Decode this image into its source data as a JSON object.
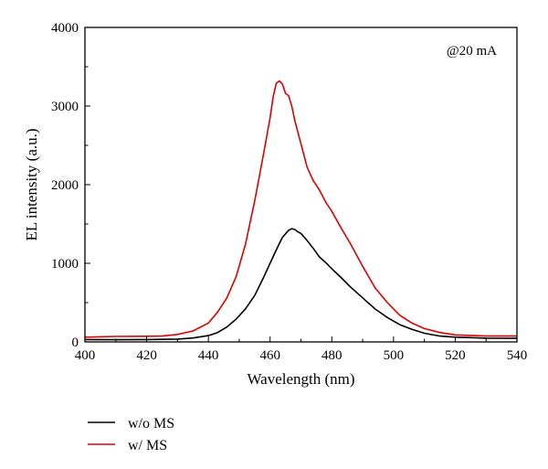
{
  "chart_data": {
    "type": "line",
    "title": "",
    "xlabel": "Wavelength (nm)",
    "ylabel": "EL intensity (a.u.)",
    "xlim": [
      400,
      540
    ],
    "ylim": [
      0,
      4000
    ],
    "xticks": [
      400,
      420,
      440,
      460,
      480,
      500,
      520,
      540
    ],
    "yticks": [
      0,
      1000,
      2000,
      3000,
      4000
    ],
    "annotation": "@20 mA",
    "grid": false,
    "legend_position": "below-left",
    "series": [
      {
        "name": "w/o MS",
        "color": "#000000",
        "x": [
          400,
          410,
          420,
          425,
          430,
          435,
          440,
          443,
          446,
          449,
          452,
          455,
          458,
          460,
          462,
          464,
          466,
          467,
          468,
          469,
          470,
          472,
          474,
          476,
          478,
          480,
          483,
          486,
          490,
          494,
          498,
          502,
          506,
          510,
          515,
          520,
          530,
          540
        ],
        "y": [
          30,
          28,
          30,
          32,
          36,
          50,
          80,
          120,
          190,
          290,
          420,
          590,
          830,
          1000,
          1170,
          1330,
          1420,
          1440,
          1430,
          1400,
          1380,
          1290,
          1190,
          1080,
          1010,
          930,
          820,
          700,
          560,
          420,
          310,
          220,
          160,
          110,
          75,
          60,
          48,
          45
        ]
      },
      {
        "name": "w/ MS",
        "color": "#e00000",
        "x": [
          400,
          410,
          420,
          425,
          430,
          435,
          440,
          443,
          446,
          449,
          452,
          455,
          458,
          460,
          461,
          462,
          463,
          464,
          465,
          466,
          467,
          468,
          470,
          472,
          474,
          476,
          478,
          480,
          483,
          486,
          490,
          494,
          498,
          502,
          506,
          510,
          515,
          520,
          530,
          540
        ],
        "y": [
          60,
          70,
          72,
          75,
          95,
          140,
          240,
          380,
          560,
          830,
          1240,
          1790,
          2420,
          2850,
          3120,
          3290,
          3320,
          3280,
          3160,
          3130,
          3000,
          2820,
          2520,
          2220,
          2050,
          1930,
          1780,
          1660,
          1450,
          1250,
          960,
          690,
          500,
          340,
          240,
          170,
          120,
          90,
          75,
          75
        ]
      }
    ]
  }
}
